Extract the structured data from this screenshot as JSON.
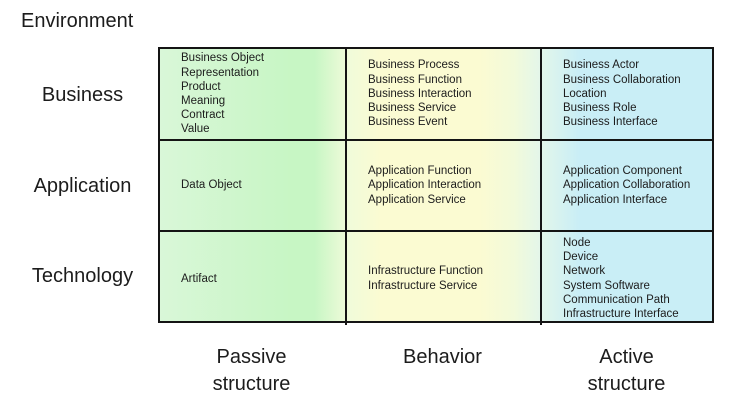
{
  "environment_label": "Environment",
  "layers": [
    {
      "label": "Business",
      "cells": [
        [
          "Business Object",
          "Representation",
          "Product",
          "Meaning",
          "Contract",
          "Value"
        ],
        [
          "Business Process",
          "Business Function",
          "Business Interaction",
          "Business Service",
          "Business Event"
        ],
        [
          "Business Actor",
          "Business Collaboration",
          "Location",
          "Business Role",
          "Business Interface"
        ]
      ]
    },
    {
      "label": "Application",
      "cells": [
        [
          "Data Object"
        ],
        [
          "Application Function",
          "Application Interaction",
          "Application Service"
        ],
        [
          "Application Component",
          "Application Collaboration",
          "Application Interface"
        ]
      ]
    },
    {
      "label": "Technology",
      "cells": [
        [
          "Artifact"
        ],
        [
          "Infrastructure Function",
          "Infrastructure Service"
        ],
        [
          "Node",
          "Device",
          "Network",
          "System Software",
          "Communication Path",
          "Infrastructure Interface"
        ]
      ]
    }
  ],
  "aspects": [
    "Passive\nstructure",
    "Behavior",
    "Active\nstructure"
  ],
  "colors": {
    "passive_green": "#c7f6c4",
    "passive_green_light": "#d9f7d8",
    "behavior_yellow": "#fbfbd2",
    "active_cyan": "#c9eef6",
    "border": "#141414",
    "text": "#1c1c1c"
  }
}
